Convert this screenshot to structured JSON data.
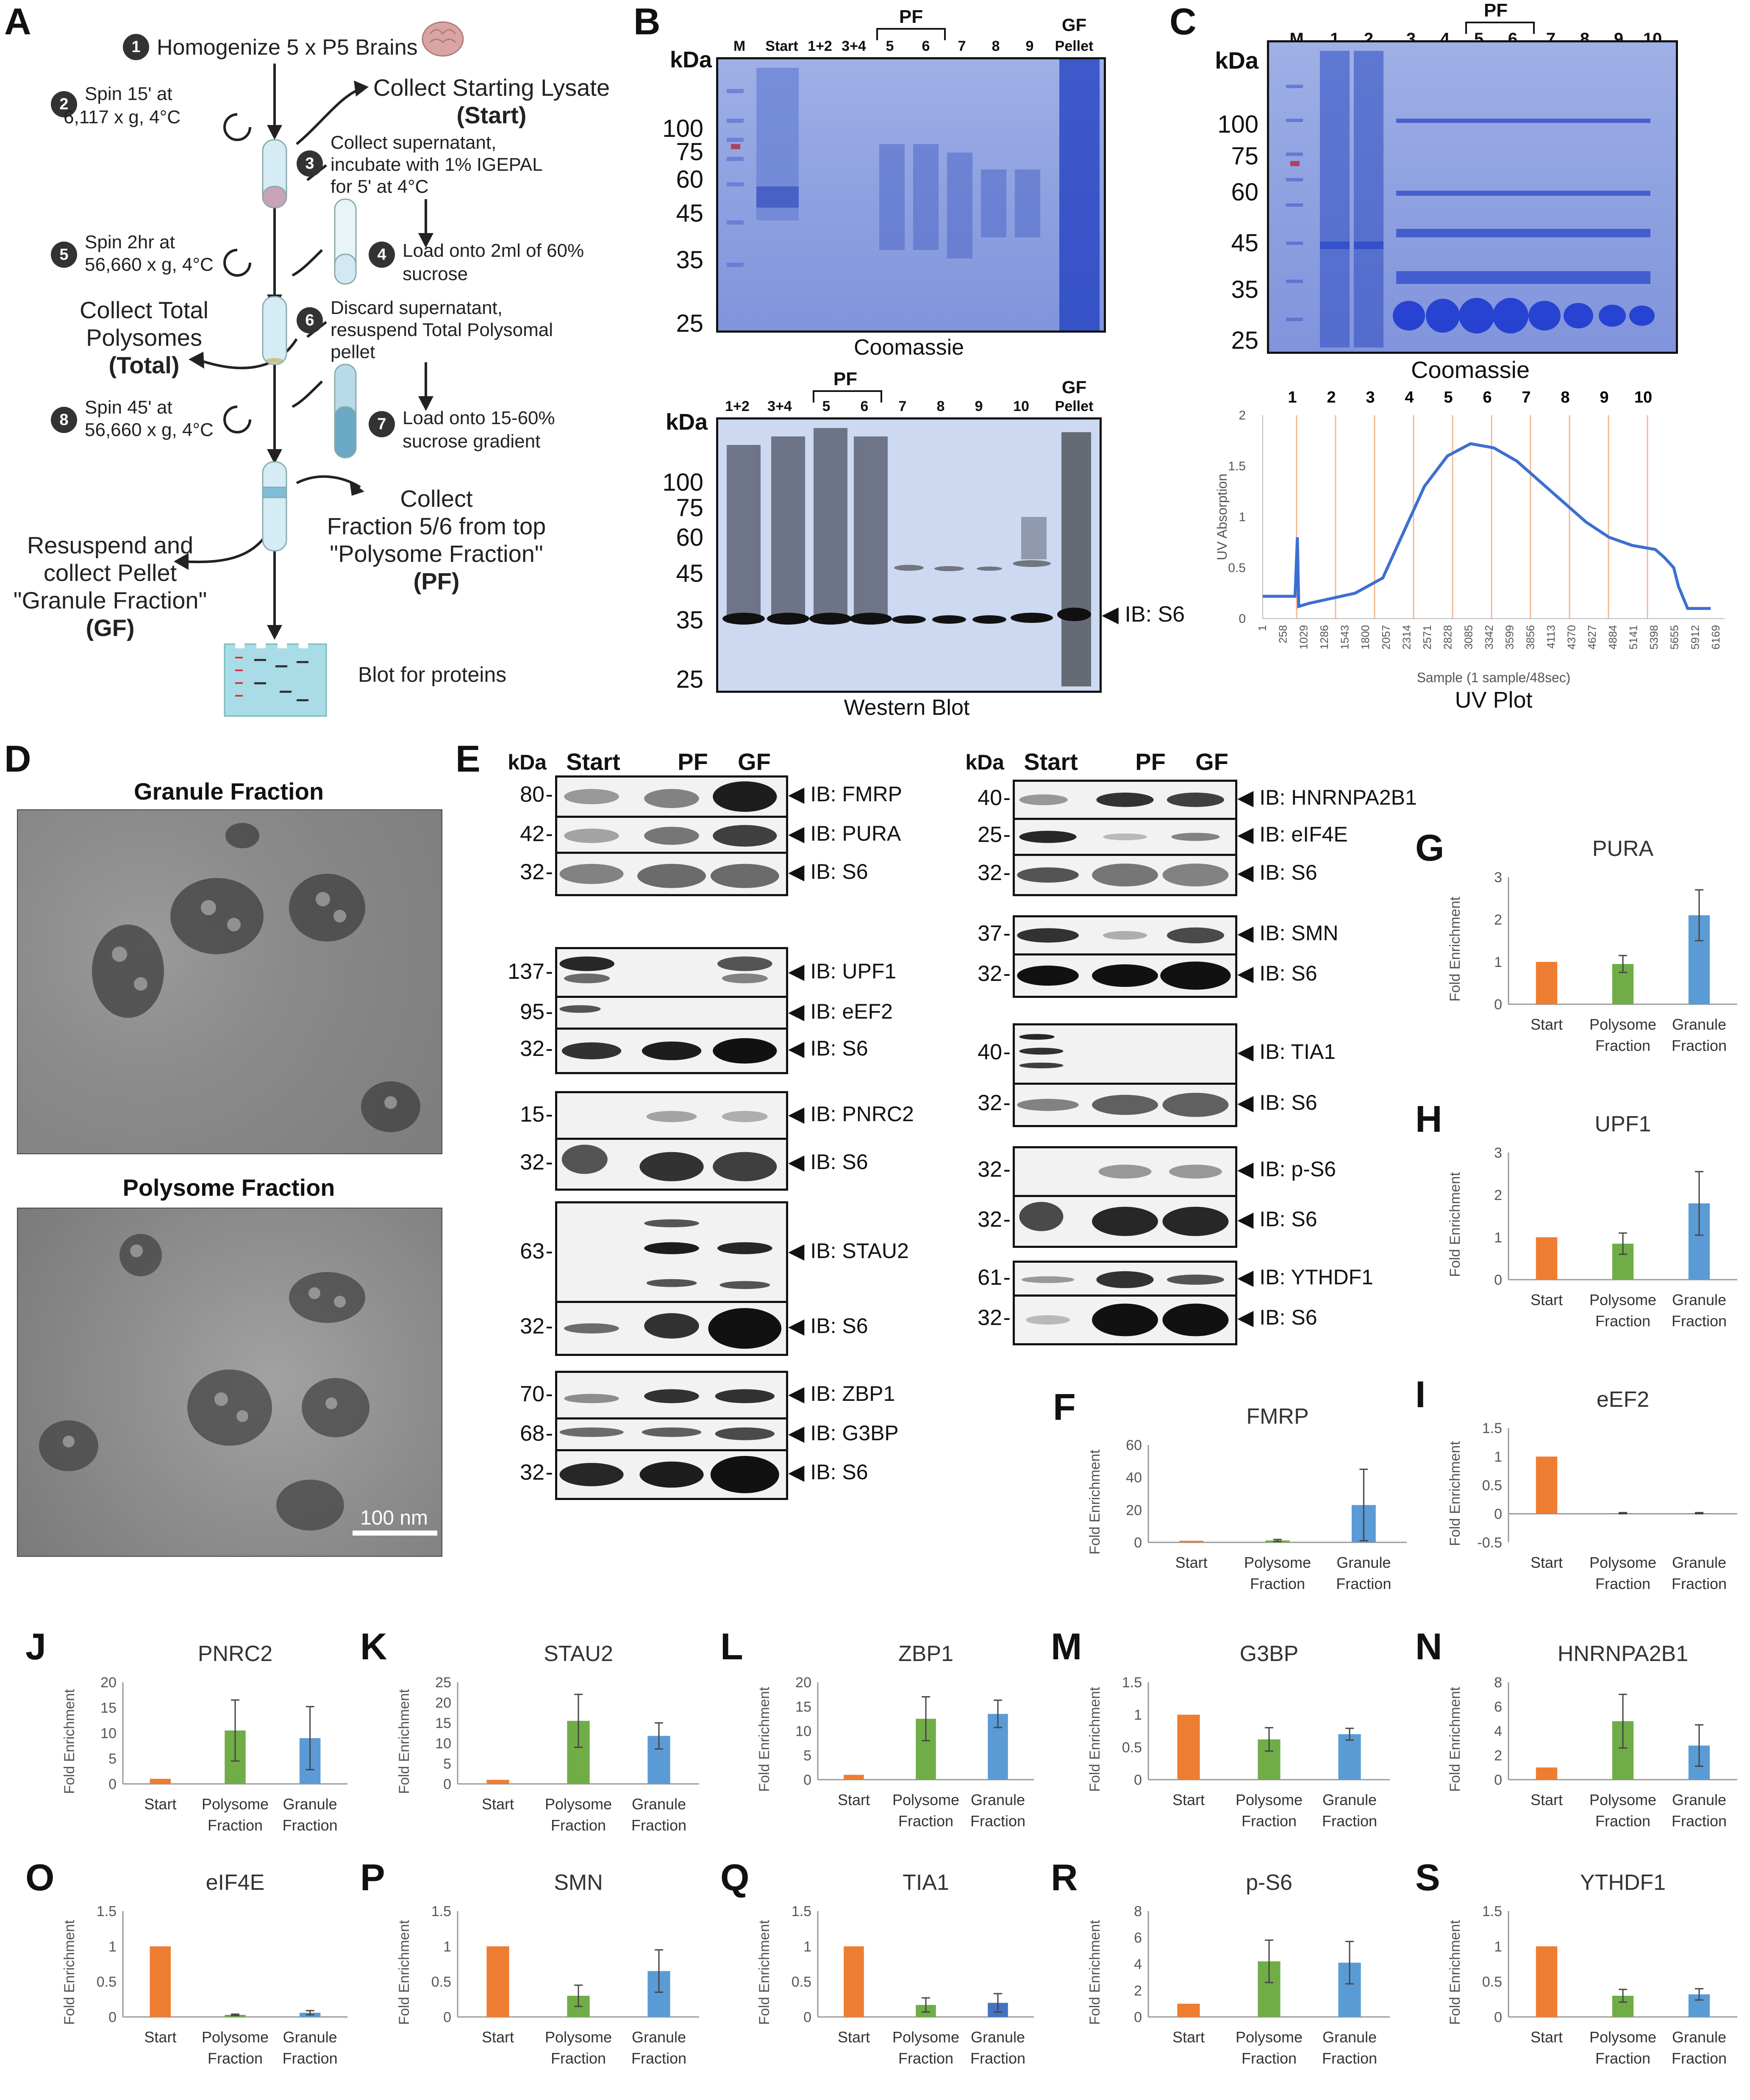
{
  "panel_labels": {
    "A": "A",
    "B": "B",
    "C": "C",
    "D": "D",
    "E": "E",
    "F": "F",
    "G": "G",
    "H": "H",
    "I": "I",
    "J": "J",
    "K": "K",
    "L": "L",
    "M": "M",
    "N": "N",
    "O": "O",
    "P": "P",
    "Q": "Q",
    "R": "R",
    "S": "S"
  },
  "panelA": {
    "s1": "Homogenize 5 x P5 Brains",
    "s2a": "Spin 15' at",
    "s2b": "6,117 x g, 4°C",
    "collect_start": "Collect Starting Lysate",
    "start_bold": "(Start)",
    "s3a": "Collect supernatant,",
    "s3b": "incubate with 1% IGEPAL",
    "s3c": "for 5' at 4°C",
    "s4a": "Load onto 2ml of 60%",
    "s4b": "sucrose",
    "s5a": "Spin 2hr at",
    "s5b": "56,660 x g, 4°C",
    "collect_total1": "Collect Total",
    "collect_total2": "Polysomes",
    "total_bold": "(Total)",
    "s6a": "Discard supernatant,",
    "s6b": "resuspend Total Polysomal",
    "s6c": "pellet",
    "s7a": "Load onto 15-60%",
    "s7b": "sucrose gradient",
    "s8a": "Spin 45' at",
    "s8b": "56,660 x g, 4°C",
    "collect_pf1": "Collect",
    "collect_pf2": "Fraction 5/6 from top",
    "collect_pf3": "\"Polysome Fraction\"",
    "pf_bold": "(PF)",
    "resus1": "Resuspend and",
    "resus2": "collect Pellet",
    "resus3": "\"Granule Fraction\"",
    "gf_bold": "(GF)",
    "blot": "Blot for proteins",
    "nums": [
      "1",
      "2",
      "3",
      "4",
      "5",
      "6",
      "7",
      "8"
    ]
  },
  "panelB": {
    "top_lanes": [
      "M",
      "Start",
      "1+2",
      "3+4",
      "5",
      "6",
      "7",
      "8",
      "9",
      "GF"
    ],
    "top_pellet": "Pellet",
    "pf": "PF",
    "kda": "kDa",
    "ticks": [
      "100",
      "75",
      "60",
      "45",
      "35",
      "25"
    ],
    "coomassie": "Coomassie",
    "wb_lanes": [
      "1+2",
      "3+4",
      "5",
      "6",
      "7",
      "8",
      "9",
      "10",
      "GF"
    ],
    "wb_pellet": "Pellet",
    "wb_ticks": [
      "100",
      "75",
      "60",
      "45",
      "35",
      "25"
    ],
    "ib_s6": "IB: S6",
    "western": "Western Blot"
  },
  "panelC": {
    "lanes": [
      "M",
      "1",
      "2",
      "3",
      "4",
      "5",
      "6",
      "7",
      "8",
      "9",
      "10"
    ],
    "pf": "PF",
    "kda": "kDa",
    "ticks": [
      "100",
      "75",
      "60",
      "45",
      "35",
      "25"
    ],
    "coomassie": "Coomassie",
    "uv_nums": [
      "1",
      "2",
      "3",
      "4",
      "5",
      "6",
      "7",
      "8",
      "9",
      "10"
    ],
    "uv_ylabel": "UV Absorption",
    "uv_xlabel": "Sample (1 sample/48sec)",
    "uv_title": "UV Plot",
    "uv_yticks": [
      "2",
      "1.5",
      "1",
      "0.5",
      "0"
    ],
    "uv_xticks": [
      "1",
      "258",
      "1029",
      "1286",
      "1543",
      "1800",
      "2057",
      "2314",
      "2571",
      "2828",
      "3085",
      "3342",
      "3599",
      "3856",
      "4113",
      "4370",
      "4627",
      "4884",
      "5141",
      "5398",
      "5655",
      "5912",
      "6169"
    ]
  },
  "panelD": {
    "granule": "Granule Fraction",
    "polysome": "Polysome Fraction",
    "scale": "100 nm"
  },
  "panelE": {
    "kda": "kDa",
    "cols": [
      "Start",
      "PF",
      "GF"
    ],
    "left": [
      {
        "kd": "80",
        "ib": "IB: FMRP"
      },
      {
        "kd": "42",
        "ib": "IB: PURA"
      },
      {
        "kd": "32",
        "ib": "IB: S6"
      },
      {
        "kd": "137",
        "ib": "IB: UPF1"
      },
      {
        "kd": "95",
        "ib": "IB: eEF2"
      },
      {
        "kd": "32",
        "ib": "IB: S6"
      },
      {
        "kd": "15",
        "ib": "IB: PNRC2"
      },
      {
        "kd": "32",
        "ib": "IB: S6"
      },
      {
        "kd": "63",
        "ib": "IB: STAU2"
      },
      {
        "kd": "32",
        "ib": "IB: S6"
      },
      {
        "kd": "70",
        "ib": "IB: ZBP1"
      },
      {
        "kd": "68",
        "ib": "IB: G3BP"
      },
      {
        "kd": "32",
        "ib": "IB: S6"
      }
    ],
    "right": [
      {
        "kd": "40",
        "ib": "IB: HNRNPA2B1"
      },
      {
        "kd": "25",
        "ib": "IB: eIF4E"
      },
      {
        "kd": "32",
        "ib": "IB: S6"
      },
      {
        "kd": "37",
        "ib": "IB: SMN"
      },
      {
        "kd": "32",
        "ib": "IB: S6"
      },
      {
        "kd": "40",
        "ib": "IB: TIA1"
      },
      {
        "kd": "32",
        "ib": "IB: S6"
      },
      {
        "kd": "32",
        "ib": "IB: p-S6"
      },
      {
        "kd": "32",
        "ib": "IB: S6"
      },
      {
        "kd": "61",
        "ib": "IB: YTHDF1"
      },
      {
        "kd": "32",
        "ib": "IB: S6"
      }
    ]
  },
  "chart_common": {
    "ylabel": "Fold Enrichment",
    "categories": [
      "Start",
      "Polysome Fraction",
      "Granule Fraction"
    ],
    "colors": [
      "#ed7d31",
      "#70ad47",
      "#5b9bd5"
    ]
  },
  "chart_data": [
    {
      "id": "F",
      "type": "bar",
      "title": "FMRP",
      "ylabel": "Fold Enrichment",
      "categories": [
        "Start",
        "Polysome Fraction",
        "Granule Fraction"
      ],
      "values": [
        1,
        1.2,
        23
      ],
      "errors": [
        0,
        0.6,
        22
      ],
      "ylim": [
        0,
        60
      ],
      "yticks": [
        "0",
        "20",
        "40",
        "60"
      ]
    },
    {
      "id": "G",
      "type": "bar",
      "title": "PURA",
      "ylabel": "Fold Enrichment",
      "categories": [
        "Start",
        "Polysome Fraction",
        "Granule Fraction"
      ],
      "values": [
        1,
        0.95,
        2.1
      ],
      "errors": [
        0,
        0.2,
        0.6
      ],
      "ylim": [
        0,
        3
      ],
      "yticks": [
        "0",
        "1",
        "2",
        "3"
      ]
    },
    {
      "id": "H",
      "type": "bar",
      "title": "UPF1",
      "ylabel": "Fold Enrichment",
      "categories": [
        "Start",
        "Polysome Fraction",
        "Granule Fraction"
      ],
      "values": [
        1,
        0.85,
        1.8
      ],
      "errors": [
        0,
        0.25,
        0.75
      ],
      "ylim": [
        0,
        3
      ],
      "yticks": [
        "0",
        "1",
        "2",
        "3"
      ]
    },
    {
      "id": "I",
      "type": "bar",
      "title": "eEF2",
      "ylabel": "Fold Enrichment",
      "categories": [
        "Start",
        "Polysome Fraction",
        "Granule Fraction"
      ],
      "values": [
        1,
        0.01,
        0.01
      ],
      "errors": [
        0,
        0.01,
        0.01
      ],
      "ylim": [
        -0.5,
        1.5
      ],
      "yticks": [
        "-0.5",
        "0",
        "0.5",
        "1",
        "1.5"
      ]
    },
    {
      "id": "J",
      "type": "bar",
      "title": "PNRC2",
      "ylabel": "Fold Enrichment",
      "categories": [
        "Start",
        "Polysome Fraction",
        "Granule Fraction"
      ],
      "values": [
        1,
        10.5,
        9
      ],
      "errors": [
        0,
        6,
        6.2
      ],
      "ylim": [
        0,
        20
      ],
      "yticks": [
        "0",
        "5",
        "10",
        "15",
        "20"
      ]
    },
    {
      "id": "K",
      "type": "bar",
      "title": "STAU2",
      "ylabel": "Fold Enrichment",
      "categories": [
        "Start",
        "Polysome Fraction",
        "Granule Fraction"
      ],
      "values": [
        1,
        15.5,
        11.8
      ],
      "errors": [
        0,
        6.5,
        3.2
      ],
      "ylim": [
        0,
        25
      ],
      "yticks": [
        "0",
        "5",
        "10",
        "15",
        "20",
        "25"
      ]
    },
    {
      "id": "L",
      "type": "bar",
      "title": "ZBP1",
      "ylabel": "Fold Enrichment",
      "categories": [
        "Start",
        "Polysome Fraction",
        "Granule Fraction"
      ],
      "values": [
        1,
        12.5,
        13.5
      ],
      "errors": [
        0,
        4.5,
        2.8
      ],
      "ylim": [
        0,
        20
      ],
      "yticks": [
        "0",
        "5",
        "10",
        "15",
        "20"
      ]
    },
    {
      "id": "M",
      "type": "bar",
      "title": "G3BP",
      "ylabel": "Fold Enrichment",
      "categories": [
        "Start",
        "Polysome Fraction",
        "Granule Fraction"
      ],
      "values": [
        1,
        0.62,
        0.7
      ],
      "errors": [
        0,
        0.18,
        0.09
      ],
      "ylim": [
        0,
        1.5
      ],
      "yticks": [
        "0",
        "0.5",
        "1",
        "1.5"
      ]
    },
    {
      "id": "N",
      "type": "bar",
      "title": "HNRNPA2B1",
      "ylabel": "Fold Enrichment",
      "categories": [
        "Start",
        "Polysome Fraction",
        "Granule Fraction"
      ],
      "values": [
        1,
        4.8,
        2.8
      ],
      "errors": [
        0,
        2.2,
        1.7
      ],
      "ylim": [
        0,
        8
      ],
      "yticks": [
        "0",
        "2",
        "4",
        "6",
        "8"
      ]
    },
    {
      "id": "O",
      "type": "bar",
      "title": "eIF4E",
      "ylabel": "Fold Enrichment",
      "categories": [
        "Start",
        "Polysome Fraction",
        "Granule Fraction"
      ],
      "values": [
        1,
        0.03,
        0.06
      ],
      "errors": [
        0,
        0.01,
        0.03
      ],
      "ylim": [
        0,
        1.5
      ],
      "yticks": [
        "0",
        "0.5",
        "1",
        "1.5"
      ]
    },
    {
      "id": "P",
      "type": "bar",
      "title": "SMN",
      "ylabel": "Fold Enrichment",
      "categories": [
        "Start",
        "Polysome Fraction",
        "Granule Fraction"
      ],
      "values": [
        1,
        0.3,
        0.65
      ],
      "errors": [
        0,
        0.15,
        0.3
      ],
      "ylim": [
        0,
        1.5
      ],
      "yticks": [
        "0",
        "0.5",
        "1",
        "1.5"
      ]
    },
    {
      "id": "Q",
      "type": "bar",
      "title": "TIA1",
      "ylabel": "Fold Enrichment",
      "categories": [
        "Start",
        "Polysome Fraction",
        "Granule Fraction"
      ],
      "values": [
        1,
        0.17,
        0.2
      ],
      "errors": [
        0,
        0.1,
        0.13
      ],
      "ylim": [
        0,
        1.5
      ],
      "yticks": [
        "0",
        "0.5",
        "1",
        "1.5"
      ],
      "colors": [
        "#ed7d31",
        "#70ad47",
        "#4472c4"
      ]
    },
    {
      "id": "R",
      "type": "bar",
      "title": "p-S6",
      "ylabel": "Fold Enrichment",
      "categories": [
        "Start",
        "Polysome Fraction",
        "Granule Fraction"
      ],
      "values": [
        1,
        4.2,
        4.1
      ],
      "errors": [
        0,
        1.6,
        1.6
      ],
      "ylim": [
        0,
        8
      ],
      "yticks": [
        "0",
        "2",
        "4",
        "6",
        "8"
      ]
    },
    {
      "id": "S",
      "type": "bar",
      "title": "YTHDF1",
      "ylabel": "Fold Enrichment",
      "categories": [
        "Start",
        "Polysome Fraction",
        "Granule Fraction"
      ],
      "values": [
        1,
        0.3,
        0.32
      ],
      "errors": [
        0,
        0.09,
        0.08
      ],
      "ylim": [
        0,
        1.5
      ],
      "yticks": [
        "0",
        "0.5",
        "1",
        "1.5"
      ]
    }
  ]
}
